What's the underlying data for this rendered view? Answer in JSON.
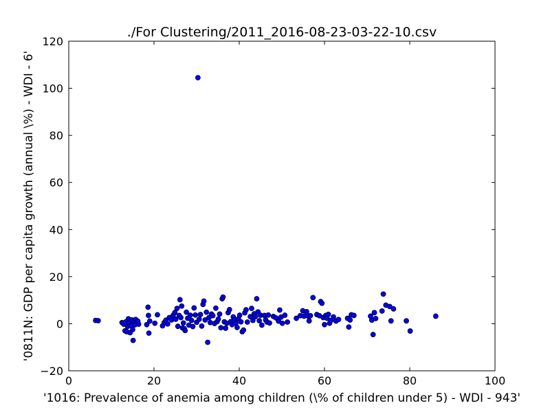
{
  "chart_data": {
    "type": "scatter",
    "title": "./For Clustering/2011_2016-08-23-03-22-10.csv",
    "xlabel": "'1016: Prevalence of anemia among children  (\\% of children under 5) - WDI - 943'",
    "ylabel": "'0811N: GDP per capita growth  (annual \\%) - WDI - 6'",
    "xlim": [
      0,
      100
    ],
    "ylim": [
      -20,
      120
    ],
    "xticks": [
      "0",
      "20",
      "40",
      "60",
      "80",
      "100"
    ],
    "yticks": [
      "−20",
      "0",
      "20",
      "40",
      "60",
      "80",
      "100",
      "120"
    ],
    "grid": false,
    "marker_color": "#0000ff",
    "points": [
      [
        6.3,
        1.4
      ],
      [
        6.9,
        1.3
      ],
      [
        12.5,
        0.5
      ],
      [
        12.9,
        -0.2
      ],
      [
        13.2,
        -3.0
      ],
      [
        13.4,
        0.8
      ],
      [
        13.6,
        -3.4
      ],
      [
        13.8,
        -1.2
      ],
      [
        14.0,
        2.1
      ],
      [
        14.2,
        0.3
      ],
      [
        14.4,
        -3.8
      ],
      [
        14.6,
        -0.8
      ],
      [
        14.8,
        1.6
      ],
      [
        15.0,
        -2.5
      ],
      [
        15.1,
        -7.1
      ],
      [
        15.3,
        0.9
      ],
      [
        15.5,
        -0.5
      ],
      [
        15.7,
        1.8
      ],
      [
        16.2,
        1.1
      ],
      [
        16.4,
        -0.2
      ],
      [
        18.3,
        -0.4
      ],
      [
        18.6,
        7.0
      ],
      [
        18.7,
        3.5
      ],
      [
        18.8,
        -4.0
      ],
      [
        19.0,
        1.1
      ],
      [
        20.2,
        0.2
      ],
      [
        20.8,
        3.8
      ],
      [
        22.0,
        -0.9
      ],
      [
        22.4,
        0.5
      ],
      [
        22.8,
        1.5
      ],
      [
        23.2,
        -0.1
      ],
      [
        23.6,
        2.6
      ],
      [
        24.1,
        1.6
      ],
      [
        24.5,
        3.6
      ],
      [
        24.9,
        4.8
      ],
      [
        25.1,
        1.9
      ],
      [
        25.4,
        6.5
      ],
      [
        25.6,
        -1.1
      ],
      [
        25.9,
        3.5
      ],
      [
        26.1,
        10.2
      ],
      [
        26.3,
        2.6
      ],
      [
        26.5,
        7.5
      ],
      [
        26.7,
        -1.8
      ],
      [
        26.9,
        0.3
      ],
      [
        27.1,
        -2.1
      ],
      [
        27.3,
        -2.9
      ],
      [
        27.6,
        4.9
      ],
      [
        27.9,
        2.3
      ],
      [
        28.2,
        -0.6
      ],
      [
        28.5,
        3.6
      ],
      [
        28.8,
        1.4
      ],
      [
        29.1,
        -1.2
      ],
      [
        29.4,
        6.7
      ],
      [
        29.7,
        3.7
      ],
      [
        30.0,
        0.6
      ],
      [
        30.3,
        104.5
      ],
      [
        30.6,
        1.9
      ],
      [
        30.9,
        3.9
      ],
      [
        31.2,
        -1.0
      ],
      [
        31.5,
        8.2
      ],
      [
        31.7,
        9.6
      ],
      [
        32.0,
        1.6
      ],
      [
        32.3,
        4.9
      ],
      [
        32.6,
        -7.9
      ],
      [
        32.9,
        2.6
      ],
      [
        33.2,
        0.5
      ],
      [
        33.5,
        4.1
      ],
      [
        33.8,
        3.4
      ],
      [
        34.2,
        0.1
      ],
      [
        34.5,
        6.6
      ],
      [
        34.8,
        0.9
      ],
      [
        35.1,
        2.0
      ],
      [
        35.4,
        4.1
      ],
      [
        35.7,
        -1.7
      ],
      [
        36.0,
        10.6
      ],
      [
        36.2,
        11.3
      ],
      [
        36.5,
        0.8
      ],
      [
        36.8,
        -1.9
      ],
      [
        37.1,
        0.2
      ],
      [
        37.4,
        4.7
      ],
      [
        37.7,
        6.0
      ],
      [
        38.0,
        0.9
      ],
      [
        38.3,
        -0.4
      ],
      [
        38.6,
        2.9
      ],
      [
        38.9,
        1.6
      ],
      [
        39.2,
        0.2
      ],
      [
        39.5,
        -1.6
      ],
      [
        39.8,
        2.1
      ],
      [
        40.1,
        3.6
      ],
      [
        40.4,
        0.8
      ],
      [
        40.7,
        -3.4
      ],
      [
        41.0,
        -2.7
      ],
      [
        41.3,
        4.6
      ],
      [
        41.6,
        5.9
      ],
      [
        41.9,
        0.7
      ],
      [
        42.6,
        3.0
      ],
      [
        42.9,
        6.5
      ],
      [
        43.2,
        1.4
      ],
      [
        43.5,
        4.2
      ],
      [
        43.8,
        3.0
      ],
      [
        44.1,
        10.6
      ],
      [
        44.4,
        5.0
      ],
      [
        44.7,
        1.3
      ],
      [
        45.0,
        3.6
      ],
      [
        45.3,
        -0.6
      ],
      [
        45.9,
        3.5
      ],
      [
        46.2,
        1.6
      ],
      [
        46.5,
        0.7
      ],
      [
        46.8,
        3.7
      ],
      [
        47.1,
        0.3
      ],
      [
        48.0,
        3.1
      ],
      [
        48.6,
        2.5
      ],
      [
        49.2,
        1.1
      ],
      [
        49.5,
        5.8
      ],
      [
        49.8,
        2.8
      ],
      [
        50.1,
        0.2
      ],
      [
        50.7,
        3.6
      ],
      [
        51.3,
        0.7
      ],
      [
        53.4,
        2.3
      ],
      [
        54.3,
        3.4
      ],
      [
        54.9,
        5.5
      ],
      [
        55.2,
        3.2
      ],
      [
        55.8,
        5.1
      ],
      [
        56.1,
        3.3
      ],
      [
        56.4,
        1.2
      ],
      [
        56.7,
        3.4
      ],
      [
        57.3,
        11.1
      ],
      [
        58.2,
        3.9
      ],
      [
        58.8,
        3.4
      ],
      [
        59.1,
        9.4
      ],
      [
        59.4,
        8.7
      ],
      [
        59.7,
        2.6
      ],
      [
        60.0,
        -0.4
      ],
      [
        60.3,
        3.5
      ],
      [
        60.6,
        2.3
      ],
      [
        60.9,
        4.0
      ],
      [
        61.2,
        0.2
      ],
      [
        61.5,
        1.4
      ],
      [
        62.1,
        2.9
      ],
      [
        62.7,
        1.1
      ],
      [
        63.3,
        1.8
      ],
      [
        65.4,
        2.3
      ],
      [
        65.7,
        -1.4
      ],
      [
        66.0,
        1.6
      ],
      [
        66.3,
        3.8
      ],
      [
        66.9,
        3.5
      ],
      [
        70.8,
        3.2
      ],
      [
        71.1,
        1.5
      ],
      [
        71.4,
        -4.6
      ],
      [
        71.7,
        4.7
      ],
      [
        72.0,
        2.2
      ],
      [
        73.5,
        5.4
      ],
      [
        73.8,
        12.6
      ],
      [
        74.4,
        7.9
      ],
      [
        75.3,
        7.3
      ],
      [
        75.6,
        1.2
      ],
      [
        76.2,
        6.3
      ],
      [
        79.2,
        1.2
      ],
      [
        80.1,
        -3.1
      ],
      [
        86.1,
        3.2
      ]
    ]
  }
}
